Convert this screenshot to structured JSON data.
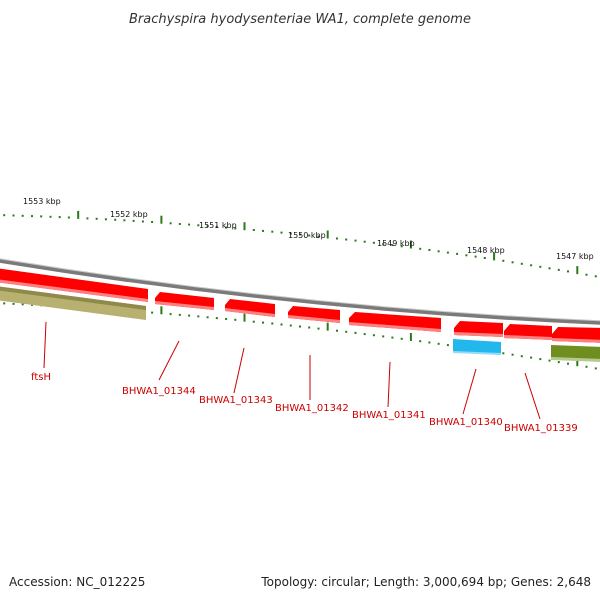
{
  "title": "Brachyspira hyodysenteriae WA1, complete genome",
  "footer": {
    "accession": "Accession: NC_012225",
    "summary": "Topology: circular; Length: 3,000,694 bp; Genes: 2,648"
  },
  "colors": {
    "backbone": "#7a7a7a",
    "tick": "#2a7a1a",
    "gene_red": "#ff0000",
    "gene_red_edge": "#ff8080",
    "gene_blue": "#22b8ee",
    "gene_olive": "#6e8f1f",
    "gene_tan": "#b8b070",
    "label_red": "#cc0000"
  },
  "scale_labels": [
    "1553 kbp",
    "1552 kbp",
    "1551 kbp",
    "1550 kbp",
    "1549 kbp",
    "1548 kbp",
    "1547 kbp"
  ],
  "genes": [
    {
      "id": "ftsH",
      "label": "ftsH"
    },
    {
      "id": "BHWA1_01344",
      "label": "BHWA1_01344"
    },
    {
      "id": "BHWA1_01343",
      "label": "BHWA1_01343"
    },
    {
      "id": "BHWA1_01342",
      "label": "BHWA1_01342"
    },
    {
      "id": "BHWA1_01341",
      "label": "BHWA1_01341"
    },
    {
      "id": "BHWA1_01340",
      "label": "BHWA1_01340"
    },
    {
      "id": "BHWA1_01339",
      "label": "BHWA1_01339"
    }
  ]
}
